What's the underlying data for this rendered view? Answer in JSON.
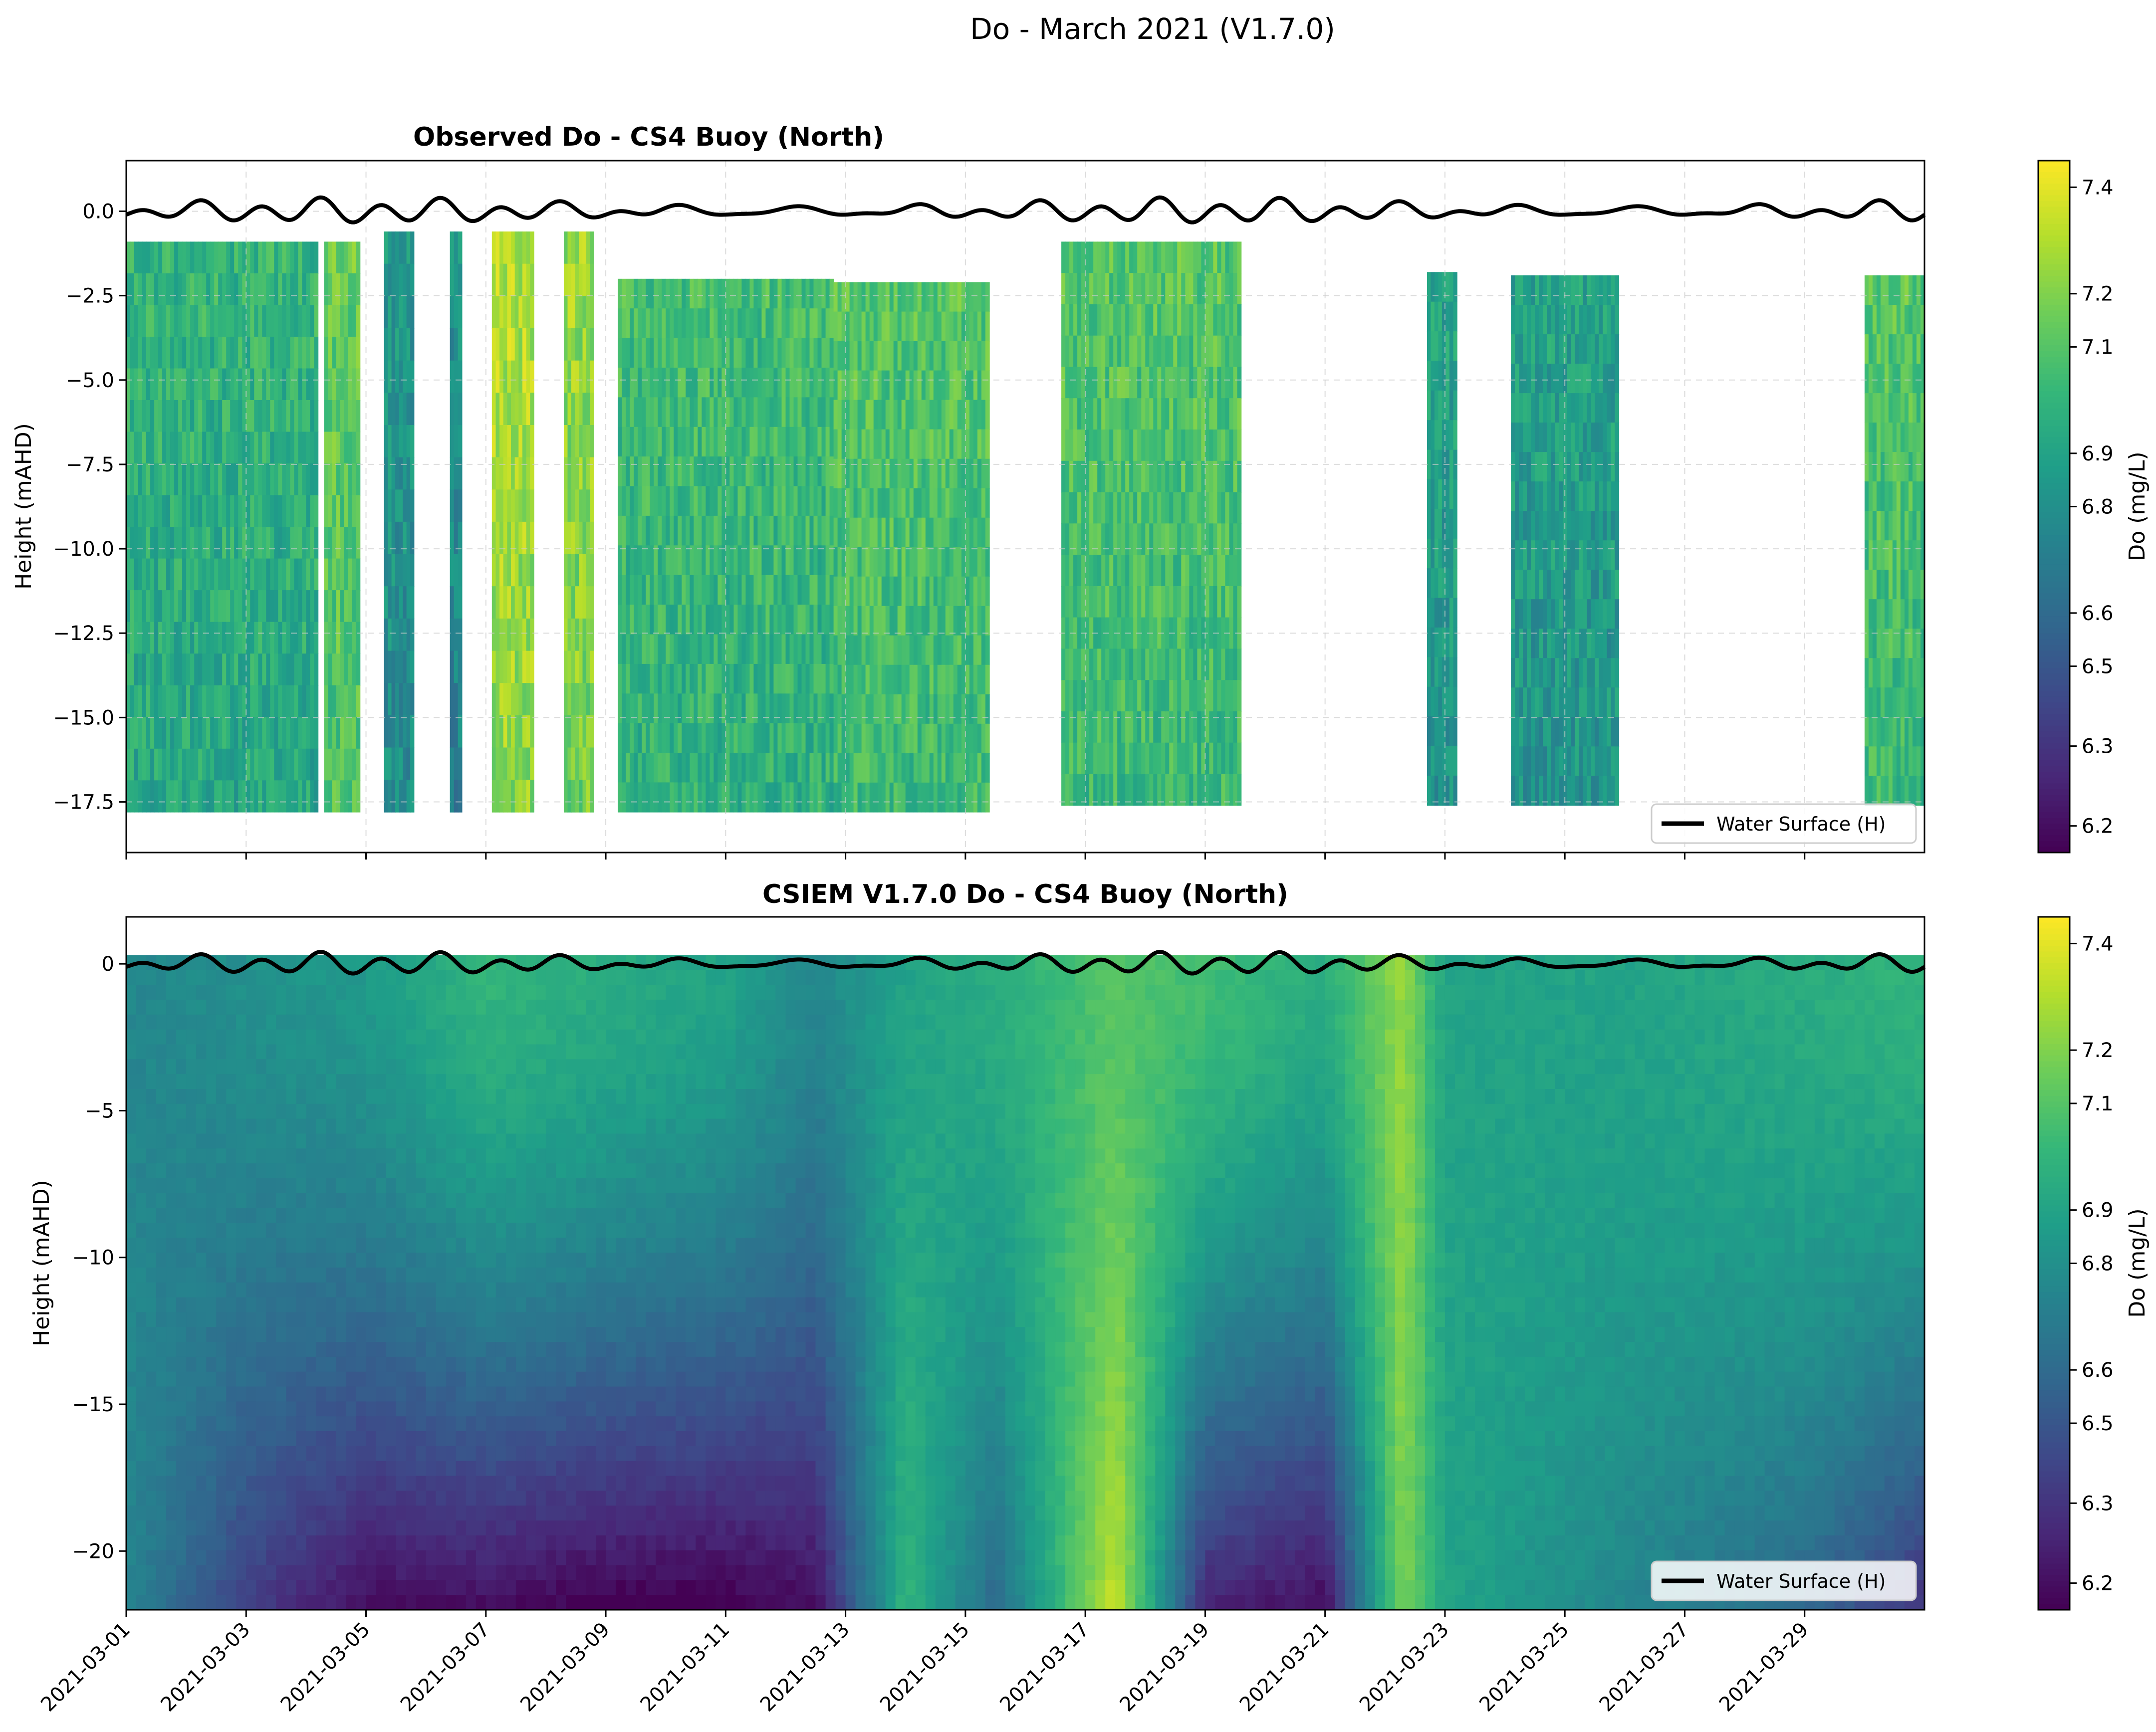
{
  "figure": {
    "suptitle": "Do - March 2021 (V1.7.0)"
  },
  "colors": {
    "water_surface_line": "#000000",
    "grid": "#cccccc",
    "colormap": "viridis"
  },
  "chart_data": [
    {
      "type": "heatmap",
      "title": "Observed Do - CS4 Buoy (North)",
      "xlabel": "",
      "ylabel": "Height (mAHD)",
      "colorbar_label": "Do (mg/L)",
      "colorbar_range": [
        6.15,
        7.45
      ],
      "colorbar_ticks": [
        {
          "value": 6.2,
          "label": "6.2"
        },
        {
          "value": 6.35,
          "label": "6.3"
        },
        {
          "value": 6.5,
          "label": "6.5"
        },
        {
          "value": 6.6,
          "label": "6.6"
        },
        {
          "value": 6.8,
          "label": "6.8"
        },
        {
          "value": 6.9,
          "label": "6.9"
        },
        {
          "value": 7.1,
          "label": "7.1"
        },
        {
          "value": 7.2,
          "label": "7.2"
        },
        {
          "value": 7.4,
          "label": "7.4"
        }
      ],
      "xlim": [
        "2021-03-01",
        "2021-03-31"
      ],
      "ylim": [
        -19.0,
        1.5
      ],
      "yticks": [
        {
          "value": 0,
          "label": "0.0"
        },
        {
          "value": -2.5,
          "label": "−2.5"
        },
        {
          "value": -5,
          "label": "−5.0"
        },
        {
          "value": -7.5,
          "label": "−7.5"
        },
        {
          "value": -10,
          "label": "−10.0"
        },
        {
          "value": -12.5,
          "label": "−12.5"
        },
        {
          "value": -15,
          "label": "−15.0"
        },
        {
          "value": -17.5,
          "label": "−17.5"
        }
      ],
      "show_xtick_labels": false,
      "grid": true,
      "legend": {
        "label": "Water Surface (H)",
        "position": "lower-right"
      },
      "data_blocks": [
        {
          "start": "2021-03-01",
          "end": "2021-03-04.2",
          "top": -0.9,
          "bottom": -17.8,
          "value": 7.0
        },
        {
          "start": "2021-03-04.3",
          "end": "2021-03-04.9",
          "top": -0.9,
          "bottom": -17.8,
          "value": 7.15
        },
        {
          "start": "2021-03-05.3",
          "end": "2021-03-05.8",
          "top": -0.6,
          "bottom": -17.8,
          "value": 6.85
        },
        {
          "start": "2021-03-06.4",
          "end": "2021-03-06.6",
          "top": -0.6,
          "bottom": -17.8,
          "value": 6.8
        },
        {
          "start": "2021-03-07.1",
          "end": "2021-03-07.8",
          "top": -0.6,
          "bottom": -17.8,
          "value": 7.3
        },
        {
          "start": "2021-03-08.3",
          "end": "2021-03-08.8",
          "top": -0.6,
          "bottom": -17.8,
          "value": 7.25
        },
        {
          "start": "2021-03-09.2",
          "end": "2021-03-12.8",
          "top": -2.0,
          "bottom": -17.8,
          "value": 7.05
        },
        {
          "start": "2021-03-12.8",
          "end": "2021-03-15.4",
          "top": -2.1,
          "bottom": -17.8,
          "value": 7.1
        },
        {
          "start": "2021-03-16.6",
          "end": "2021-03-19.6",
          "top": -0.9,
          "bottom": -17.6,
          "value": 7.1
        },
        {
          "start": "2021-03-22.7",
          "end": "2021-03-23.2",
          "top": -1.8,
          "bottom": -17.6,
          "value": 6.9
        },
        {
          "start": "2021-03-24.1",
          "end": "2021-03-25.9",
          "top": -1.9,
          "bottom": -17.6,
          "value": 6.9
        },
        {
          "start": "2021-03-30.0",
          "end": "2021-03-31.0",
          "top": -1.9,
          "bottom": -17.6,
          "value": 7.1
        }
      ],
      "water_surface_amplitude": 0.3
    },
    {
      "type": "heatmap",
      "title": "CSIEM V1.7.0 Do - CS4 Buoy (North)",
      "xlabel": "",
      "ylabel": "Height (mAHD)",
      "colorbar_label": "Do (mg/L)",
      "colorbar_range": [
        6.15,
        7.45
      ],
      "colorbar_ticks": [
        {
          "value": 6.2,
          "label": "6.2"
        },
        {
          "value": 6.35,
          "label": "6.3"
        },
        {
          "value": 6.5,
          "label": "6.5"
        },
        {
          "value": 6.6,
          "label": "6.6"
        },
        {
          "value": 6.8,
          "label": "6.8"
        },
        {
          "value": 6.9,
          "label": "6.9"
        },
        {
          "value": 7.1,
          "label": "7.1"
        },
        {
          "value": 7.2,
          "label": "7.2"
        },
        {
          "value": 7.4,
          "label": "7.4"
        }
      ],
      "xlim": [
        "2021-03-01",
        "2021-03-31"
      ],
      "ylim": [
        -22.0,
        1.6
      ],
      "yticks": [
        {
          "value": 0,
          "label": "0"
        },
        {
          "value": -5,
          "label": "−5"
        },
        {
          "value": -10,
          "label": "−10"
        },
        {
          "value": -15,
          "label": "−15"
        },
        {
          "value": -20,
          "label": "−20"
        }
      ],
      "xticks": [
        "2021-03-01",
        "2021-03-03",
        "2021-03-05",
        "2021-03-07",
        "2021-03-09",
        "2021-03-11",
        "2021-03-13",
        "2021-03-15",
        "2021-03-17",
        "2021-03-19",
        "2021-03-21",
        "2021-03-23",
        "2021-03-25",
        "2021-03-27",
        "2021-03-29"
      ],
      "grid": false,
      "legend": {
        "label": "Water Surface (H)",
        "position": "lower-right"
      },
      "column_profiles": [
        {
          "day": 1,
          "surface": 6.75,
          "bottom": 6.75
        },
        {
          "day": 3,
          "surface": 6.8,
          "bottom": 6.4
        },
        {
          "day": 5,
          "surface": 6.85,
          "bottom": 6.2
        },
        {
          "day": 7,
          "surface": 7.0,
          "bottom": 6.2
        },
        {
          "day": 9,
          "surface": 6.95,
          "bottom": 6.15
        },
        {
          "day": 11,
          "surface": 6.9,
          "bottom": 6.15
        },
        {
          "day": 12.5,
          "surface": 6.75,
          "bottom": 6.2
        },
        {
          "day": 14,
          "surface": 6.9,
          "bottom": 7.0
        },
        {
          "day": 15.5,
          "surface": 6.95,
          "bottom": 6.6
        },
        {
          "day": 17.5,
          "surface": 7.1,
          "bottom": 7.35
        },
        {
          "day": 19,
          "surface": 7.05,
          "bottom": 6.3
        },
        {
          "day": 21,
          "surface": 6.95,
          "bottom": 6.2
        },
        {
          "day": 22.3,
          "surface": 7.25,
          "bottom": 7.2
        },
        {
          "day": 23,
          "surface": 6.9,
          "bottom": 6.9
        },
        {
          "day": 26,
          "surface": 6.9,
          "bottom": 6.75
        },
        {
          "day": 29,
          "surface": 6.95,
          "bottom": 6.6
        },
        {
          "day": 31,
          "surface": 7.0,
          "bottom": 6.35
        }
      ],
      "water_surface_amplitude": 0.3
    }
  ]
}
